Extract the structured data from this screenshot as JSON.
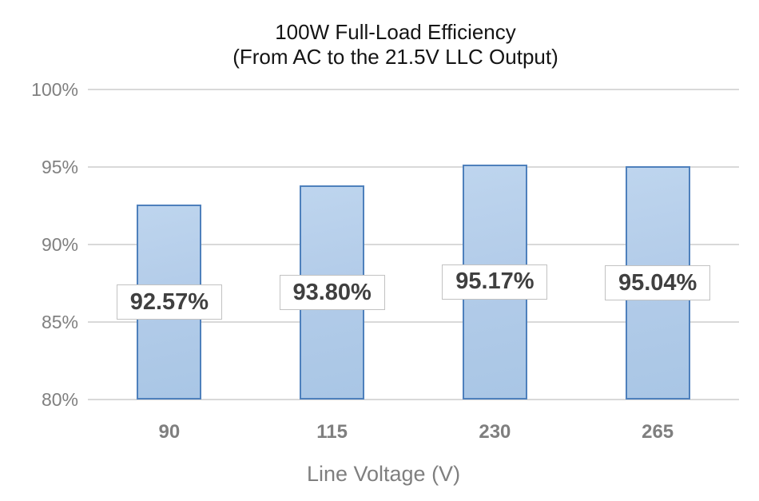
{
  "chart_data": {
    "type": "bar",
    "title_line1": "100W Full-Load Efficiency",
    "title_line2": "(From AC to the 21.5V LLC Output)",
    "categories": [
      "90",
      "115",
      "230",
      "265"
    ],
    "values": [
      92.57,
      93.8,
      95.17,
      95.04
    ],
    "data_labels": [
      "92.57%",
      "93.80%",
      "95.17%",
      "95.04%"
    ],
    "xlabel": "Line Voltage (V)",
    "ylabel": "",
    "ylim": [
      80,
      100
    ],
    "ytick_step": 5,
    "yticks_top_to_bottom": [
      "100%",
      "95%",
      "90%",
      "85%",
      "80%"
    ],
    "grid": true,
    "legend": false,
    "colors": {
      "bar_fill": "#B3CCE9",
      "bar_border": "#4E80BC",
      "gridline": "#D9D9D9",
      "axis_text": "#808080",
      "title_text": "#141414",
      "data_label_text": "#404040",
      "data_label_border": "#C2C2C2",
      "data_label_bg": "#FFFFFF",
      "background": "#FFFFFF"
    }
  }
}
